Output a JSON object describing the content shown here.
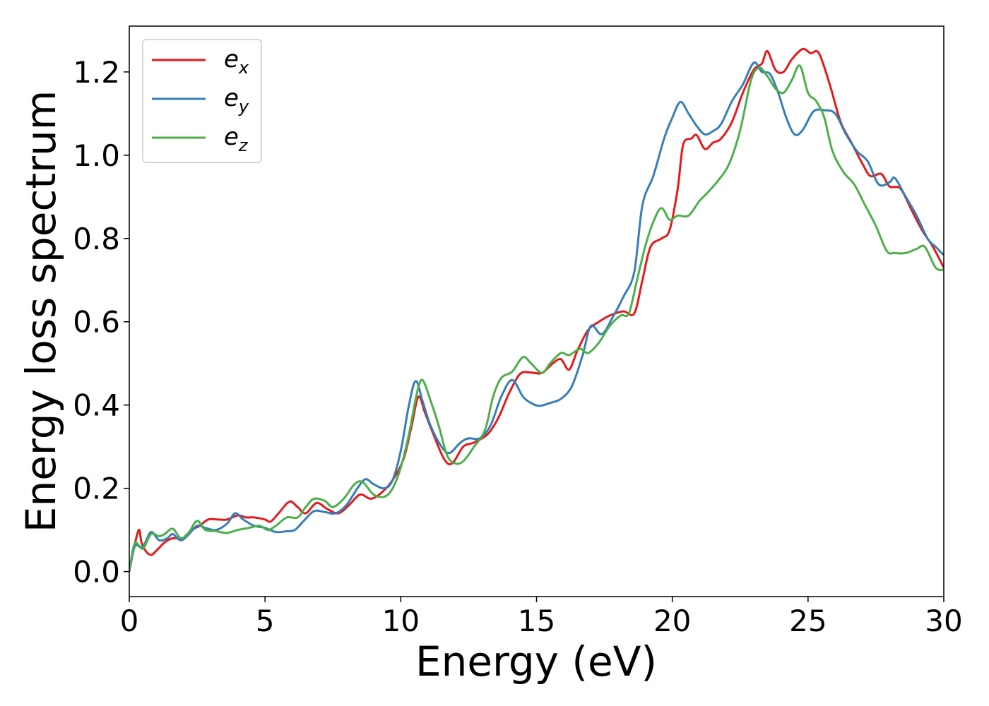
{
  "chart_data": {
    "type": "line",
    "title": "",
    "xlabel": "Energy (eV)",
    "ylabel": "Energy loss spectrum",
    "xlim": [
      0,
      30
    ],
    "ylim": [
      -0.06,
      1.31
    ],
    "xticks": [
      0,
      5,
      10,
      15,
      20,
      25,
      30
    ],
    "xtick_labels": [
      "0",
      "5",
      "10",
      "15",
      "20",
      "25",
      "30"
    ],
    "yticks": [
      0.0,
      0.2,
      0.4,
      0.6,
      0.8,
      1.0,
      1.2
    ],
    "ytick_labels": [
      "0.0",
      "0.2",
      "0.4",
      "0.6",
      "0.8",
      "1.0",
      "1.2"
    ],
    "grid": false,
    "legend_position": "top-left",
    "series": [
      {
        "name": "e_x",
        "base": "e",
        "sub": "x",
        "color": "#e41a1c",
        "points": [
          [
            0,
            0
          ],
          [
            0.15,
            0.05
          ],
          [
            0.35,
            0.1
          ],
          [
            0.45,
            0.07
          ],
          [
            0.6,
            0.05
          ],
          [
            0.8,
            0.04
          ],
          [
            1.0,
            0.05
          ],
          [
            1.3,
            0.07
          ],
          [
            1.6,
            0.08
          ],
          [
            2.0,
            0.08
          ],
          [
            2.3,
            0.1
          ],
          [
            2.6,
            0.11
          ],
          [
            2.9,
            0.125
          ],
          [
            3.3,
            0.125
          ],
          [
            3.6,
            0.125
          ],
          [
            4.0,
            0.135
          ],
          [
            4.3,
            0.13
          ],
          [
            4.6,
            0.13
          ],
          [
            5.0,
            0.125
          ],
          [
            5.2,
            0.12
          ],
          [
            5.5,
            0.14
          ],
          [
            5.9,
            0.168
          ],
          [
            6.2,
            0.155
          ],
          [
            6.5,
            0.14
          ],
          [
            6.9,
            0.165
          ],
          [
            7.3,
            0.15
          ],
          [
            7.7,
            0.14
          ],
          [
            8.1,
            0.16
          ],
          [
            8.5,
            0.185
          ],
          [
            8.9,
            0.175
          ],
          [
            9.3,
            0.19
          ],
          [
            9.7,
            0.22
          ],
          [
            10.1,
            0.27
          ],
          [
            10.4,
            0.35
          ],
          [
            10.65,
            0.42
          ],
          [
            10.9,
            0.38
          ],
          [
            11.2,
            0.33
          ],
          [
            11.6,
            0.27
          ],
          [
            11.9,
            0.26
          ],
          [
            12.3,
            0.3
          ],
          [
            12.7,
            0.31
          ],
          [
            13.2,
            0.33
          ],
          [
            13.6,
            0.37
          ],
          [
            14.0,
            0.43
          ],
          [
            14.4,
            0.475
          ],
          [
            14.8,
            0.478
          ],
          [
            15.2,
            0.477
          ],
          [
            15.6,
            0.5
          ],
          [
            15.9,
            0.51
          ],
          [
            16.2,
            0.485
          ],
          [
            16.5,
            0.53
          ],
          [
            16.9,
            0.58
          ],
          [
            17.3,
            0.6
          ],
          [
            17.7,
            0.615
          ],
          [
            18.2,
            0.625
          ],
          [
            18.6,
            0.62
          ],
          [
            18.9,
            0.7
          ],
          [
            19.2,
            0.78
          ],
          [
            19.6,
            0.8
          ],
          [
            19.9,
            0.82
          ],
          [
            20.2,
            0.92
          ],
          [
            20.4,
            1.025
          ],
          [
            20.7,
            1.04
          ],
          [
            20.9,
            1.048
          ],
          [
            21.2,
            1.015
          ],
          [
            21.5,
            1.03
          ],
          [
            21.8,
            1.04
          ],
          [
            22.2,
            1.08
          ],
          [
            22.6,
            1.15
          ],
          [
            23.0,
            1.205
          ],
          [
            23.3,
            1.22
          ],
          [
            23.5,
            1.25
          ],
          [
            23.8,
            1.205
          ],
          [
            24.1,
            1.2
          ],
          [
            24.4,
            1.23
          ],
          [
            24.8,
            1.255
          ],
          [
            25.1,
            1.245
          ],
          [
            25.4,
            1.245
          ],
          [
            25.8,
            1.17
          ],
          [
            26.2,
            1.08
          ],
          [
            26.6,
            1.03
          ],
          [
            27.0,
            0.98
          ],
          [
            27.3,
            0.95
          ],
          [
            27.7,
            0.955
          ],
          [
            28.0,
            0.925
          ],
          [
            28.4,
            0.92
          ],
          [
            28.8,
            0.87
          ],
          [
            29.2,
            0.82
          ],
          [
            29.6,
            0.78
          ],
          [
            30.0,
            0.73
          ]
        ]
      },
      {
        "name": "e_y",
        "base": "e",
        "sub": "y",
        "color": "#377eb8",
        "points": [
          [
            0,
            0
          ],
          [
            0.2,
            0.06
          ],
          [
            0.5,
            0.06
          ],
          [
            0.8,
            0.095
          ],
          [
            1.1,
            0.075
          ],
          [
            1.4,
            0.08
          ],
          [
            1.6,
            0.09
          ],
          [
            1.9,
            0.075
          ],
          [
            2.2,
            0.09
          ],
          [
            2.5,
            0.11
          ],
          [
            2.8,
            0.105
          ],
          [
            3.2,
            0.1
          ],
          [
            3.6,
            0.115
          ],
          [
            3.9,
            0.14
          ],
          [
            4.2,
            0.125
          ],
          [
            4.6,
            0.11
          ],
          [
            5.0,
            0.105
          ],
          [
            5.4,
            0.095
          ],
          [
            5.8,
            0.097
          ],
          [
            6.1,
            0.1
          ],
          [
            6.4,
            0.12
          ],
          [
            6.8,
            0.145
          ],
          [
            7.2,
            0.143
          ],
          [
            7.6,
            0.14
          ],
          [
            8.0,
            0.16
          ],
          [
            8.4,
            0.2
          ],
          [
            8.7,
            0.222
          ],
          [
            9.0,
            0.21
          ],
          [
            9.4,
            0.2
          ],
          [
            9.7,
            0.22
          ],
          [
            10.0,
            0.29
          ],
          [
            10.3,
            0.4
          ],
          [
            10.55,
            0.458
          ],
          [
            10.8,
            0.41
          ],
          [
            11.1,
            0.35
          ],
          [
            11.5,
            0.3
          ],
          [
            11.8,
            0.285
          ],
          [
            12.2,
            0.31
          ],
          [
            12.5,
            0.32
          ],
          [
            12.9,
            0.32
          ],
          [
            13.3,
            0.35
          ],
          [
            13.7,
            0.42
          ],
          [
            14.1,
            0.46
          ],
          [
            14.5,
            0.42
          ],
          [
            14.8,
            0.405
          ],
          [
            15.1,
            0.398
          ],
          [
            15.5,
            0.405
          ],
          [
            15.9,
            0.415
          ],
          [
            16.3,
            0.445
          ],
          [
            16.7,
            0.52
          ],
          [
            17.0,
            0.59
          ],
          [
            17.4,
            0.57
          ],
          [
            17.8,
            0.61
          ],
          [
            18.2,
            0.66
          ],
          [
            18.6,
            0.72
          ],
          [
            18.9,
            0.88
          ],
          [
            19.3,
            0.95
          ],
          [
            19.7,
            1.04
          ],
          [
            20.0,
            1.09
          ],
          [
            20.3,
            1.128
          ],
          [
            20.6,
            1.1
          ],
          [
            20.9,
            1.07
          ],
          [
            21.2,
            1.05
          ],
          [
            21.5,
            1.058
          ],
          [
            21.8,
            1.075
          ],
          [
            22.2,
            1.13
          ],
          [
            22.6,
            1.17
          ],
          [
            23.0,
            1.222
          ],
          [
            23.3,
            1.2
          ],
          [
            23.6,
            1.195
          ],
          [
            23.9,
            1.15
          ],
          [
            24.2,
            1.09
          ],
          [
            24.5,
            1.05
          ],
          [
            24.8,
            1.06
          ],
          [
            25.2,
            1.105
          ],
          [
            25.6,
            1.108
          ],
          [
            26.0,
            1.1
          ],
          [
            26.4,
            1.05
          ],
          [
            26.8,
            1.01
          ],
          [
            27.2,
            0.985
          ],
          [
            27.6,
            0.93
          ],
          [
            28.0,
            0.935
          ],
          [
            28.2,
            0.945
          ],
          [
            28.6,
            0.9
          ],
          [
            29.0,
            0.855
          ],
          [
            29.4,
            0.8
          ],
          [
            29.7,
            0.78
          ],
          [
            30.0,
            0.76
          ]
        ]
      },
      {
        "name": "e_z",
        "base": "e",
        "sub": "z",
        "color": "#4daf4a",
        "points": [
          [
            0,
            0
          ],
          [
            0.2,
            0.068
          ],
          [
            0.5,
            0.055
          ],
          [
            0.8,
            0.09
          ],
          [
            1.1,
            0.085
          ],
          [
            1.3,
            0.09
          ],
          [
            1.6,
            0.103
          ],
          [
            1.9,
            0.08
          ],
          [
            2.2,
            0.095
          ],
          [
            2.5,
            0.122
          ],
          [
            2.8,
            0.1
          ],
          [
            3.2,
            0.097
          ],
          [
            3.6,
            0.093
          ],
          [
            4.0,
            0.1
          ],
          [
            4.4,
            0.105
          ],
          [
            4.8,
            0.11
          ],
          [
            5.1,
            0.1
          ],
          [
            5.4,
            0.11
          ],
          [
            5.8,
            0.13
          ],
          [
            6.2,
            0.13
          ],
          [
            6.5,
            0.155
          ],
          [
            6.8,
            0.175
          ],
          [
            7.2,
            0.17
          ],
          [
            7.5,
            0.155
          ],
          [
            7.9,
            0.175
          ],
          [
            8.3,
            0.21
          ],
          [
            8.6,
            0.215
          ],
          [
            9.0,
            0.185
          ],
          [
            9.4,
            0.18
          ],
          [
            9.7,
            0.2
          ],
          [
            10.0,
            0.25
          ],
          [
            10.3,
            0.33
          ],
          [
            10.6,
            0.43
          ],
          [
            10.8,
            0.46
          ],
          [
            11.1,
            0.41
          ],
          [
            11.4,
            0.35
          ],
          [
            11.7,
            0.28
          ],
          [
            12.0,
            0.26
          ],
          [
            12.3,
            0.265
          ],
          [
            12.7,
            0.3
          ],
          [
            13.1,
            0.34
          ],
          [
            13.4,
            0.42
          ],
          [
            13.7,
            0.465
          ],
          [
            14.1,
            0.48
          ],
          [
            14.5,
            0.515
          ],
          [
            14.8,
            0.5
          ],
          [
            15.2,
            0.477
          ],
          [
            15.5,
            0.5
          ],
          [
            15.9,
            0.525
          ],
          [
            16.2,
            0.52
          ],
          [
            16.6,
            0.535
          ],
          [
            16.9,
            0.525
          ],
          [
            17.3,
            0.55
          ],
          [
            17.7,
            0.59
          ],
          [
            18.1,
            0.615
          ],
          [
            18.4,
            0.62
          ],
          [
            18.7,
            0.7
          ],
          [
            19.0,
            0.78
          ],
          [
            19.3,
            0.84
          ],
          [
            19.6,
            0.873
          ],
          [
            19.9,
            0.845
          ],
          [
            20.2,
            0.855
          ],
          [
            20.6,
            0.855
          ],
          [
            21.0,
            0.89
          ],
          [
            21.3,
            0.91
          ],
          [
            21.7,
            0.94
          ],
          [
            22.1,
            0.98
          ],
          [
            22.5,
            1.06
          ],
          [
            22.9,
            1.18
          ],
          [
            23.2,
            1.21
          ],
          [
            23.5,
            1.19
          ],
          [
            23.8,
            1.16
          ],
          [
            24.1,
            1.15
          ],
          [
            24.4,
            1.18
          ],
          [
            24.7,
            1.215
          ],
          [
            25.0,
            1.15
          ],
          [
            25.3,
            1.13
          ],
          [
            25.6,
            1.09
          ],
          [
            25.9,
            1.01
          ],
          [
            26.3,
            0.96
          ],
          [
            26.7,
            0.93
          ],
          [
            27.1,
            0.88
          ],
          [
            27.5,
            0.83
          ],
          [
            27.9,
            0.77
          ],
          [
            28.2,
            0.765
          ],
          [
            28.6,
            0.765
          ],
          [
            29.0,
            0.775
          ],
          [
            29.3,
            0.78
          ],
          [
            29.7,
            0.73
          ],
          [
            30.0,
            0.725
          ]
        ]
      }
    ]
  }
}
